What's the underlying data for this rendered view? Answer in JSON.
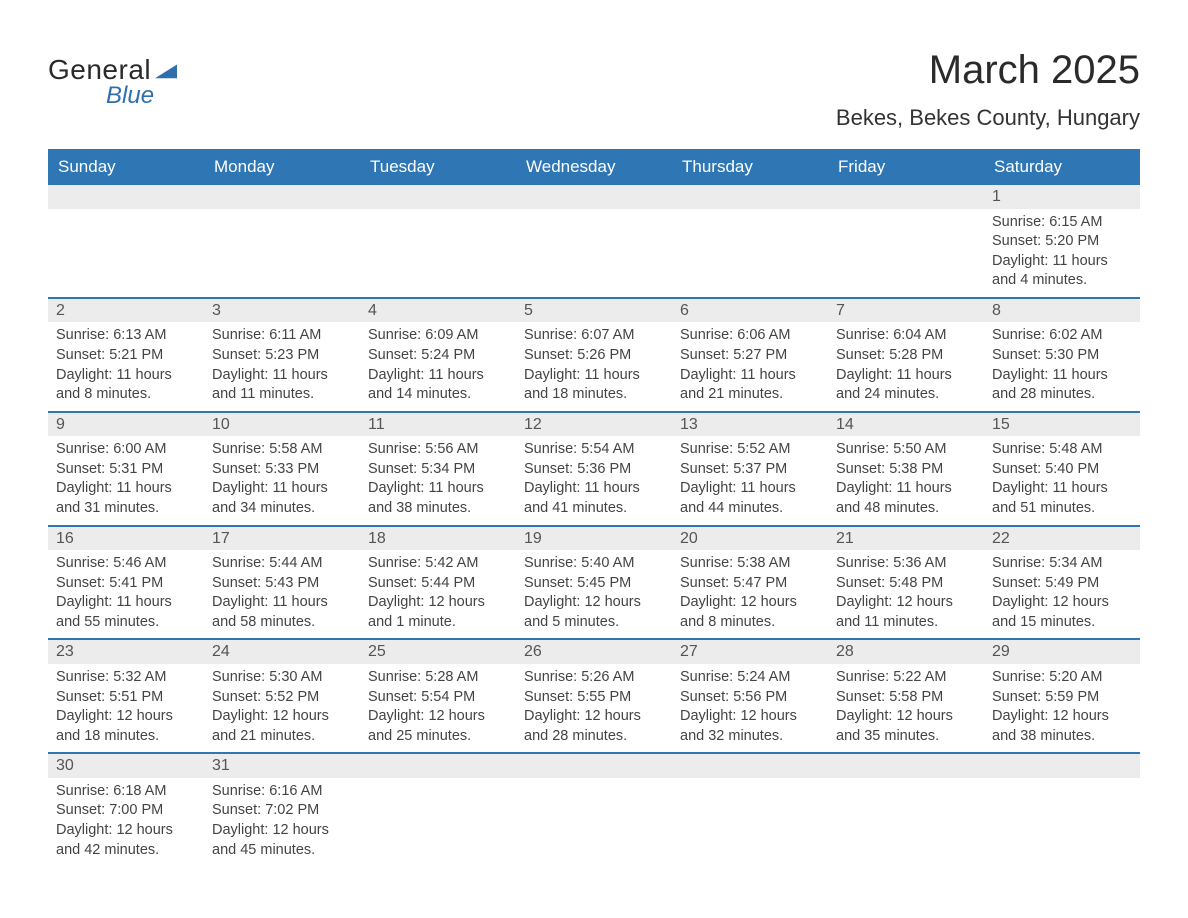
{
  "brand": {
    "name_part1": "General",
    "name_part2": "Blue"
  },
  "title": "March 2025",
  "location": "Bekes, Bekes County, Hungary",
  "colors": {
    "header_bg": "#2f76b5",
    "header_text": "#ffffff",
    "row_divider": "#2f76b5",
    "daynum_bg": "#ececec",
    "body_text": "#444444",
    "page_bg": "#ffffff",
    "logo_blue": "#2f6fab"
  },
  "layout": {
    "columns": 7,
    "rows": 6,
    "cell_fontsize_pt": 11,
    "title_fontsize_pt": 30
  },
  "weekdays": [
    "Sunday",
    "Monday",
    "Tuesday",
    "Wednesday",
    "Thursday",
    "Friday",
    "Saturday"
  ],
  "weeks": [
    [
      null,
      null,
      null,
      null,
      null,
      null,
      {
        "n": "1",
        "sunrise": "Sunrise: 6:15 AM",
        "sunset": "Sunset: 5:20 PM",
        "d1": "Daylight: 11 hours",
        "d2": "and 4 minutes."
      }
    ],
    [
      {
        "n": "2",
        "sunrise": "Sunrise: 6:13 AM",
        "sunset": "Sunset: 5:21 PM",
        "d1": "Daylight: 11 hours",
        "d2": "and 8 minutes."
      },
      {
        "n": "3",
        "sunrise": "Sunrise: 6:11 AM",
        "sunset": "Sunset: 5:23 PM",
        "d1": "Daylight: 11 hours",
        "d2": "and 11 minutes."
      },
      {
        "n": "4",
        "sunrise": "Sunrise: 6:09 AM",
        "sunset": "Sunset: 5:24 PM",
        "d1": "Daylight: 11 hours",
        "d2": "and 14 minutes."
      },
      {
        "n": "5",
        "sunrise": "Sunrise: 6:07 AM",
        "sunset": "Sunset: 5:26 PM",
        "d1": "Daylight: 11 hours",
        "d2": "and 18 minutes."
      },
      {
        "n": "6",
        "sunrise": "Sunrise: 6:06 AM",
        "sunset": "Sunset: 5:27 PM",
        "d1": "Daylight: 11 hours",
        "d2": "and 21 minutes."
      },
      {
        "n": "7",
        "sunrise": "Sunrise: 6:04 AM",
        "sunset": "Sunset: 5:28 PM",
        "d1": "Daylight: 11 hours",
        "d2": "and 24 minutes."
      },
      {
        "n": "8",
        "sunrise": "Sunrise: 6:02 AM",
        "sunset": "Sunset: 5:30 PM",
        "d1": "Daylight: 11 hours",
        "d2": "and 28 minutes."
      }
    ],
    [
      {
        "n": "9",
        "sunrise": "Sunrise: 6:00 AM",
        "sunset": "Sunset: 5:31 PM",
        "d1": "Daylight: 11 hours",
        "d2": "and 31 minutes."
      },
      {
        "n": "10",
        "sunrise": "Sunrise: 5:58 AM",
        "sunset": "Sunset: 5:33 PM",
        "d1": "Daylight: 11 hours",
        "d2": "and 34 minutes."
      },
      {
        "n": "11",
        "sunrise": "Sunrise: 5:56 AM",
        "sunset": "Sunset: 5:34 PM",
        "d1": "Daylight: 11 hours",
        "d2": "and 38 minutes."
      },
      {
        "n": "12",
        "sunrise": "Sunrise: 5:54 AM",
        "sunset": "Sunset: 5:36 PM",
        "d1": "Daylight: 11 hours",
        "d2": "and 41 minutes."
      },
      {
        "n": "13",
        "sunrise": "Sunrise: 5:52 AM",
        "sunset": "Sunset: 5:37 PM",
        "d1": "Daylight: 11 hours",
        "d2": "and 44 minutes."
      },
      {
        "n": "14",
        "sunrise": "Sunrise: 5:50 AM",
        "sunset": "Sunset: 5:38 PM",
        "d1": "Daylight: 11 hours",
        "d2": "and 48 minutes."
      },
      {
        "n": "15",
        "sunrise": "Sunrise: 5:48 AM",
        "sunset": "Sunset: 5:40 PM",
        "d1": "Daylight: 11 hours",
        "d2": "and 51 minutes."
      }
    ],
    [
      {
        "n": "16",
        "sunrise": "Sunrise: 5:46 AM",
        "sunset": "Sunset: 5:41 PM",
        "d1": "Daylight: 11 hours",
        "d2": "and 55 minutes."
      },
      {
        "n": "17",
        "sunrise": "Sunrise: 5:44 AM",
        "sunset": "Sunset: 5:43 PM",
        "d1": "Daylight: 11 hours",
        "d2": "and 58 minutes."
      },
      {
        "n": "18",
        "sunrise": "Sunrise: 5:42 AM",
        "sunset": "Sunset: 5:44 PM",
        "d1": "Daylight: 12 hours",
        "d2": "and 1 minute."
      },
      {
        "n": "19",
        "sunrise": "Sunrise: 5:40 AM",
        "sunset": "Sunset: 5:45 PM",
        "d1": "Daylight: 12 hours",
        "d2": "and 5 minutes."
      },
      {
        "n": "20",
        "sunrise": "Sunrise: 5:38 AM",
        "sunset": "Sunset: 5:47 PM",
        "d1": "Daylight: 12 hours",
        "d2": "and 8 minutes."
      },
      {
        "n": "21",
        "sunrise": "Sunrise: 5:36 AM",
        "sunset": "Sunset: 5:48 PM",
        "d1": "Daylight: 12 hours",
        "d2": "and 11 minutes."
      },
      {
        "n": "22",
        "sunrise": "Sunrise: 5:34 AM",
        "sunset": "Sunset: 5:49 PM",
        "d1": "Daylight: 12 hours",
        "d2": "and 15 minutes."
      }
    ],
    [
      {
        "n": "23",
        "sunrise": "Sunrise: 5:32 AM",
        "sunset": "Sunset: 5:51 PM",
        "d1": "Daylight: 12 hours",
        "d2": "and 18 minutes."
      },
      {
        "n": "24",
        "sunrise": "Sunrise: 5:30 AM",
        "sunset": "Sunset: 5:52 PM",
        "d1": "Daylight: 12 hours",
        "d2": "and 21 minutes."
      },
      {
        "n": "25",
        "sunrise": "Sunrise: 5:28 AM",
        "sunset": "Sunset: 5:54 PM",
        "d1": "Daylight: 12 hours",
        "d2": "and 25 minutes."
      },
      {
        "n": "26",
        "sunrise": "Sunrise: 5:26 AM",
        "sunset": "Sunset: 5:55 PM",
        "d1": "Daylight: 12 hours",
        "d2": "and 28 minutes."
      },
      {
        "n": "27",
        "sunrise": "Sunrise: 5:24 AM",
        "sunset": "Sunset: 5:56 PM",
        "d1": "Daylight: 12 hours",
        "d2": "and 32 minutes."
      },
      {
        "n": "28",
        "sunrise": "Sunrise: 5:22 AM",
        "sunset": "Sunset: 5:58 PM",
        "d1": "Daylight: 12 hours",
        "d2": "and 35 minutes."
      },
      {
        "n": "29",
        "sunrise": "Sunrise: 5:20 AM",
        "sunset": "Sunset: 5:59 PM",
        "d1": "Daylight: 12 hours",
        "d2": "and 38 minutes."
      }
    ],
    [
      {
        "n": "30",
        "sunrise": "Sunrise: 6:18 AM",
        "sunset": "Sunset: 7:00 PM",
        "d1": "Daylight: 12 hours",
        "d2": "and 42 minutes."
      },
      {
        "n": "31",
        "sunrise": "Sunrise: 6:16 AM",
        "sunset": "Sunset: 7:02 PM",
        "d1": "Daylight: 12 hours",
        "d2": "and 45 minutes."
      },
      null,
      null,
      null,
      null,
      null
    ]
  ]
}
